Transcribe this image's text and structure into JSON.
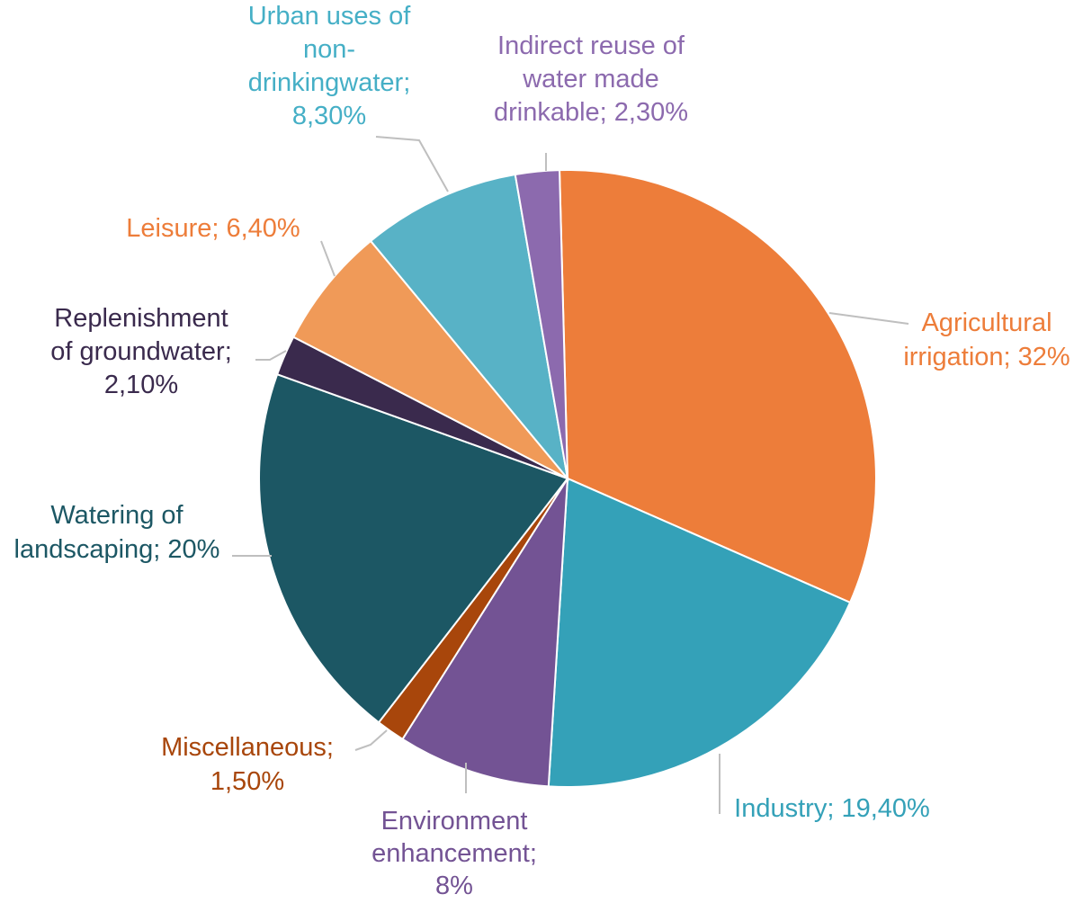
{
  "chart_data": {
    "type": "pie",
    "title": "",
    "legend": "none",
    "slices": [
      {
        "name": "Agricultural irrigation",
        "value": 32,
        "label": "Agricultural irrigation; 32%",
        "color": "#ED7D3A"
      },
      {
        "name": "Industry",
        "value": 19.4,
        "label": "Industry; 19,40%",
        "color": "#34A1B8"
      },
      {
        "name": "Environment enhancement",
        "value": 8,
        "label": "Environment enhancement; 8%",
        "color": "#735394"
      },
      {
        "name": "Miscellaneous",
        "value": 1.5,
        "label": "Miscellaneous; 1,50%",
        "color": "#A8460B"
      },
      {
        "name": "Watering of landscaping",
        "value": 20,
        "label": "Watering of landscaping; 20%",
        "color": "#1C5764"
      },
      {
        "name": "Replenishment of groundwater",
        "value": 2.1,
        "label": "Replenishment of groundwater; 2,10%",
        "color": "#3A2A4D"
      },
      {
        "name": "Leisure",
        "value": 6.4,
        "label": "Leisure; 6,40%",
        "color": "#F09A58"
      },
      {
        "name": "Urban uses of non-drinkingwater",
        "value": 8.3,
        "label": "Urban uses of non-drinkingwater; 8,30%",
        "color": "#58B2C6"
      },
      {
        "name": "Indirect reuse of water made drinkable",
        "value": 2.3,
        "label": "Indirect reuse of water made drinkable; 2,30%",
        "color": "#8C6AAE"
      }
    ],
    "label_colors": [
      "#ED7D3A",
      "#34A1B8",
      "#735394",
      "#A8460B",
      "#1C5764",
      "#3A2A4D",
      "#ED7D3A",
      "#45AFC6",
      "#8C6AAE"
    ],
    "label_lines": [
      [
        "Agricultural",
        "irrigation; 32%"
      ],
      [
        "Industry; 19,40%"
      ],
      [
        "Environment",
        "enhancement;",
        "8%"
      ],
      [
        "Miscellaneous;",
        "1,50%"
      ],
      [
        "Watering of",
        "landscaping; 20%"
      ],
      [
        "Replenishment",
        "of groundwater;",
        "2,10%"
      ],
      [
        "Leisure; 6,40%"
      ],
      [
        "Urban uses of",
        "non-",
        "drinkingwater;",
        "8,30%"
      ],
      [
        "Indirect reuse of",
        "water made",
        "drinkable; 2,30%"
      ]
    ]
  }
}
